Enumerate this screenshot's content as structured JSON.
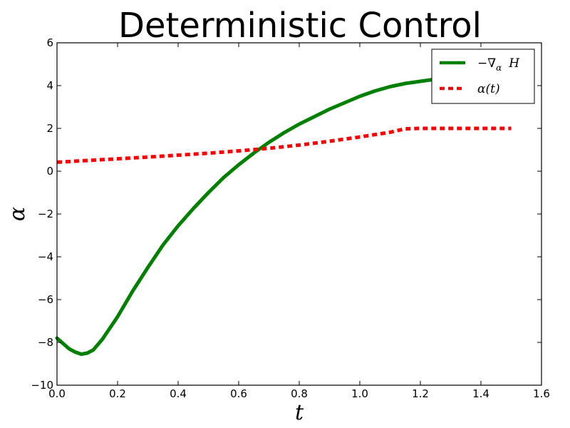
{
  "chart_data": {
    "type": "line",
    "title": "Deterministic Control",
    "xlabel": "t",
    "ylabel": "α",
    "xlim": [
      0.0,
      1.6
    ],
    "ylim": [
      -10,
      6
    ],
    "xticks": [
      "0.0",
      "0.2",
      "0.4",
      "0.6",
      "0.8",
      "1.0",
      "1.2",
      "1.4",
      "1.6"
    ],
    "yticks": [
      "−10",
      "−8",
      "−6",
      "−4",
      "−2",
      "0",
      "2",
      "4",
      "6"
    ],
    "xtick_values": [
      0.0,
      0.2,
      0.4,
      0.6,
      0.8,
      1.0,
      1.2,
      1.4,
      1.6
    ],
    "ytick_values": [
      -10,
      -8,
      -6,
      -4,
      -2,
      0,
      2,
      4,
      6
    ],
    "grid": false,
    "legend_position": "top-right",
    "series": [
      {
        "name": "−∇α H",
        "color": "#008000",
        "style": "solid",
        "x": [
          0.0,
          0.02,
          0.04,
          0.06,
          0.08,
          0.1,
          0.12,
          0.15,
          0.2,
          0.25,
          0.3,
          0.35,
          0.4,
          0.45,
          0.5,
          0.55,
          0.6,
          0.65,
          0.7,
          0.75,
          0.8,
          0.85,
          0.9,
          0.95,
          1.0,
          1.05,
          1.1,
          1.15,
          1.2,
          1.25,
          1.3,
          1.35,
          1.4,
          1.45,
          1.5
        ],
        "y": [
          -7.8,
          -8.05,
          -8.3,
          -8.45,
          -8.55,
          -8.5,
          -8.35,
          -7.85,
          -6.8,
          -5.6,
          -4.5,
          -3.45,
          -2.55,
          -1.75,
          -1.0,
          -0.3,
          0.3,
          0.85,
          1.35,
          1.8,
          2.2,
          2.55,
          2.9,
          3.2,
          3.5,
          3.75,
          3.95,
          4.1,
          4.2,
          4.3,
          4.38,
          4.45,
          4.5,
          4.55,
          4.6
        ]
      },
      {
        "name": "α(t)",
        "color": "#ff0000",
        "style": "dashed",
        "x": [
          0.0,
          0.1,
          0.2,
          0.3,
          0.4,
          0.5,
          0.6,
          0.7,
          0.8,
          0.9,
          1.0,
          1.1,
          1.15,
          1.2,
          1.3,
          1.4,
          1.5
        ],
        "y": [
          0.42,
          0.5,
          0.58,
          0.66,
          0.75,
          0.84,
          0.95,
          1.07,
          1.22,
          1.4,
          1.6,
          1.82,
          1.98,
          2.0,
          2.0,
          2.0,
          2.0
        ]
      }
    ]
  },
  "legend": {
    "entry_1": {
      "prefix": "−∇",
      "sub": "α",
      "suffix": "H"
    },
    "entry_2": {
      "text": "α(t)"
    }
  }
}
